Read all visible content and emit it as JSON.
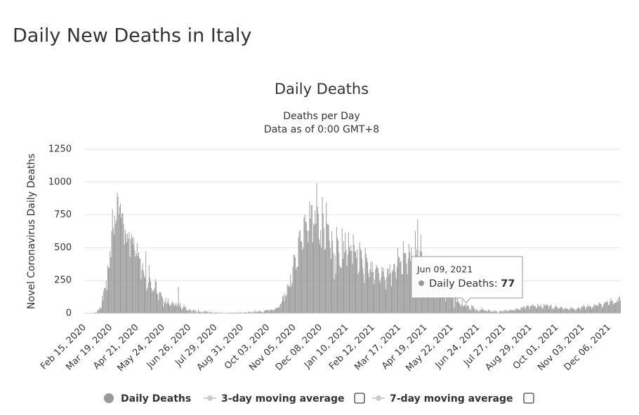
{
  "page_title": "Daily New Deaths in Italy",
  "chart_data": {
    "type": "bar",
    "title": "Daily Deaths",
    "subtitle": [
      "Deaths per Day",
      "Data as of 0:00 GMT+8"
    ],
    "y_label": "Novel Coronavirus Daily Deaths",
    "ylim": [
      0,
      1250
    ],
    "yticks": [
      0,
      250,
      500,
      750,
      1000,
      1250
    ],
    "grid": true,
    "categories": [
      "Feb 15, 2020",
      null,
      null,
      null,
      null,
      null,
      null,
      null,
      null,
      null,
      null,
      null,
      null,
      null,
      null,
      null,
      null,
      null,
      null,
      null,
      null,
      null,
      null,
      null,
      null,
      null,
      null,
      null,
      null,
      null,
      null,
      null,
      null,
      "Mar 19, 2020",
      null,
      null,
      null,
      null,
      null,
      null,
      null,
      null,
      null,
      null,
      null,
      null,
      null,
      null,
      null,
      null,
      null,
      null,
      null,
      null,
      null,
      null,
      null,
      null,
      null,
      null,
      null,
      null,
      null,
      null,
      null,
      null,
      "Apr 21, 2020",
      null,
      null,
      null,
      null,
      null,
      null,
      null,
      null,
      null,
      null,
      null,
      null,
      null,
      null,
      null,
      null,
      null,
      null,
      null,
      null,
      null,
      null,
      null,
      null,
      null,
      null,
      null,
      null,
      null,
      null,
      null,
      null,
      "May 24, 2020",
      null,
      null,
      null,
      null,
      null,
      null,
      null,
      null,
      null,
      null,
      null,
      null,
      null,
      null,
      null,
      null,
      null,
      null,
      null,
      null,
      null,
      null,
      null,
      null,
      null,
      null,
      null,
      null,
      null,
      null,
      null,
      null,
      "Jun 26, 2020",
      null,
      null,
      null,
      null,
      null,
      null,
      null,
      null,
      null,
      null,
      null,
      null,
      null,
      null,
      null,
      null,
      null,
      null,
      null,
      null,
      null,
      null,
      null,
      null,
      null,
      null,
      null,
      null,
      null,
      null,
      null,
      null,
      "Jul 29, 2020",
      null,
      null,
      null,
      null,
      null,
      null,
      null,
      null,
      null,
      null,
      null,
      null,
      null,
      null,
      null,
      null,
      null,
      null,
      null,
      null,
      null,
      null,
      null,
      null,
      null,
      null,
      null,
      null,
      null,
      null,
      null,
      null,
      "Aug 31, 2020",
      null,
      null,
      null,
      null,
      null,
      null,
      null,
      null,
      null,
      null,
      null,
      null,
      null,
      null,
      null,
      null,
      null,
      null,
      null,
      null,
      null,
      null,
      null,
      null,
      null,
      null,
      null,
      null,
      null,
      null,
      null,
      null,
      "Oct 03, 2020",
      null,
      null,
      null,
      null,
      null,
      null,
      null,
      null,
      null,
      null,
      null,
      null,
      null,
      null,
      null,
      null,
      null,
      null,
      null,
      null,
      null,
      null,
      null,
      null,
      null,
      null,
      null,
      null,
      null,
      null,
      null,
      null,
      "Nov 05, 2020",
      null,
      null,
      null,
      null,
      null,
      null,
      null,
      null,
      null,
      null,
      null,
      null,
      null,
      null,
      null,
      null,
      null,
      null,
      null,
      null,
      null,
      null,
      null,
      null,
      null,
      null,
      null,
      null,
      null,
      null,
      null,
      null,
      "Dec 08, 2020",
      null,
      null,
      null,
      null,
      null,
      null,
      null,
      null,
      null,
      null,
      null,
      null,
      null,
      null,
      null,
      null,
      null,
      null,
      null,
      null,
      null,
      null,
      null,
      null,
      null,
      null,
      null,
      null,
      null,
      null,
      null,
      null,
      "Jan 10, 2021",
      null,
      null,
      null,
      null,
      null,
      null,
      null,
      null,
      null,
      null,
      null,
      null,
      null,
      null,
      null,
      null,
      null,
      null,
      null,
      null,
      null,
      null,
      null,
      null,
      null,
      null,
      null,
      null,
      null,
      null,
      null,
      null,
      "Feb 12, 2021",
      null,
      null,
      null,
      null,
      null,
      null,
      null,
      null,
      null,
      null,
      null,
      null,
      null,
      null,
      null,
      null,
      null,
      null,
      null,
      null,
      null,
      null,
      null,
      null,
      null,
      null,
      null,
      null,
      null,
      null,
      null,
      null,
      "Mar 17, 2021",
      null,
      null,
      null,
      null,
      null,
      null,
      null,
      null,
      null,
      null,
      null,
      null,
      null,
      null,
      null,
      null,
      null,
      null,
      null,
      null,
      null,
      null,
      null,
      null,
      null,
      null,
      null,
      null,
      null,
      null,
      null,
      null,
      "Apr 19, 2021",
      null,
      null,
      null,
      null,
      null,
      null,
      null,
      null,
      null,
      null,
      null,
      null,
      null,
      null,
      null,
      null,
      null,
      null,
      null,
      null,
      null,
      null,
      null,
      null,
      null,
      null,
      null,
      null,
      null,
      null,
      null,
      null,
      "May 22, 2021",
      null,
      null,
      null,
      null,
      null,
      null,
      null,
      null,
      null,
      null,
      null,
      null,
      null,
      null,
      null,
      null,
      null,
      null,
      null,
      null,
      null,
      null,
      null,
      null,
      null,
      null,
      null,
      null,
      null,
      null,
      null,
      null,
      "Jun 24, 2021",
      null,
      null,
      null,
      null,
      null,
      null,
      null,
      null,
      null,
      null,
      null,
      null,
      null,
      null,
      null,
      null,
      null,
      null,
      null,
      null,
      null,
      null,
      null,
      null,
      null,
      null,
      null,
      null,
      null,
      null,
      null,
      null,
      "Jul 27, 2021",
      null,
      null,
      null,
      null,
      null,
      null,
      null,
      null,
      null,
      null,
      null,
      null,
      null,
      null,
      null,
      null,
      null,
      null,
      null,
      null,
      null,
      null,
      null,
      null,
      null,
      null,
      null,
      null,
      null,
      null,
      null,
      null,
      "Aug 29, 2021",
      null,
      null,
      null,
      null,
      null,
      null,
      null,
      null,
      null,
      null,
      null,
      null,
      null,
      null,
      null,
      null,
      null,
      null,
      null,
      null,
      null,
      null,
      null,
      null,
      null,
      null,
      null,
      null,
      null,
      null,
      null,
      null,
      "Oct 01, 2021",
      null,
      null,
      null,
      null,
      null,
      null,
      null,
      null,
      null,
      null,
      null,
      null,
      null,
      null,
      null,
      null,
      null,
      null,
      null,
      null,
      null,
      null,
      null,
      null,
      null,
      null,
      null,
      null,
      null,
      null,
      null,
      null,
      "Nov 03, 2021",
      null,
      null,
      null,
      null,
      null,
      null,
      null,
      null,
      null,
      null,
      null,
      null,
      null,
      null,
      null,
      null,
      null,
      null,
      null,
      null,
      null,
      null,
      null,
      null,
      null,
      null,
      null,
      null,
      null,
      null,
      null,
      null,
      "Dec 06, 2021",
      null,
      null,
      null,
      null,
      null,
      null,
      null,
      null,
      null,
      null,
      null,
      null,
      null,
      null
    ],
    "series": [
      {
        "name": "Daily Deaths",
        "color": "#999999",
        "values": [
          0,
          0,
          0,
          0,
          0,
          0,
          1,
          1,
          0,
          4,
          3,
          2,
          5,
          4,
          8,
          5,
          18,
          27,
          28,
          41,
          49,
          36,
          133,
          97,
          168,
          196,
          189,
          250,
          175,
          368,
          349,
          345,
          475,
          427,
          627,
          793,
          651,
          601,
          743,
          683,
          712,
          919,
          889,
          756,
          812,
          837,
          727,
          760,
          766,
          681,
          525,
          636,
          604,
          542,
          610,
          570,
          619,
          431,
          566,
          602,
          578,
          525,
          575,
          482,
          433,
          454,
          534,
          437,
          464,
          420,
          415,
          260,
          333,
          382,
          323,
          285,
          269,
          474,
          174,
          195,
          236,
          369,
          274,
          243,
          194,
          165,
          179,
          172,
          195,
          262,
          242,
          153,
          145,
          99,
          162,
          161,
          156,
          130,
          119,
          50,
          92,
          78,
          117,
          70,
          87,
          111,
          75,
          60,
          55,
          71,
          88,
          85,
          72,
          53,
          65,
          79,
          53,
          71,
          202,
          56,
          78,
          44,
          26,
          34,
          47,
          66,
          49,
          47,
          24,
          23,
          18,
          30,
          30,
          22,
          23,
          8,
          23,
          21,
          30,
          15,
          21,
          7,
          8,
          30,
          15,
          12,
          13,
          7,
          13,
          6,
          17,
          13,
          20,
          11,
          15,
          13,
          3,
          15,
          9,
          5,
          10,
          5,
          5,
          5,
          6,
          11,
          3,
          9,
          5,
          3,
          4,
          5,
          6,
          6,
          3,
          2,
          6,
          1,
          4,
          4,
          6,
          3,
          6,
          6,
          3,
          7,
          5,
          6,
          4,
          6,
          5,
          5,
          7,
          4,
          4,
          13,
          9,
          1,
          4,
          8,
          6,
          6,
          10,
          7,
          6,
          4,
          14,
          10,
          10,
          10,
          6,
          7,
          14,
          9,
          9,
          24,
          10,
          10,
          15,
          14,
          17,
          20,
          11,
          10,
          14,
          7,
          16,
          24,
          23,
          27,
          23,
          24,
          27,
          18,
          28,
          28,
          22,
          28,
          24,
          29,
          39,
          41,
          43,
          41,
          47,
          47,
          69,
          73,
          89,
          127,
          136,
          91,
          151,
          128,
          141,
          221,
          205,
          217,
          199,
          297,
          208,
          233,
          353,
          445,
          446,
          425,
          331,
          353,
          356,
          580,
          623,
          636,
          550,
          546,
          484,
          504,
          731,
          753,
          699,
          692,
          630,
          541,
          630,
          853,
          722,
          822,
          827,
          541,
          686,
          672,
          785,
          684,
          993,
          814,
          761,
          564,
          528,
          634,
          499,
          887,
          761,
          649,
          484,
          491,
          846,
          680,
          683,
          674,
          553,
          498,
          415,
          628,
          553,
          459,
          261,
          445,
          305,
          659,
          575,
          555,
          462,
          364,
          348,
          347,
          649,
          414,
          548,
          463,
          617,
          483,
          361,
          448,
          616,
          507,
          477,
          521,
          475,
          377,
          603,
          524,
          472,
          467,
          420,
          488,
          299,
          318,
          541,
          492,
          477,
          421,
          345,
          299,
          233,
          499,
          456,
          421,
          391,
          307,
          274,
          337,
          397,
          316,
          391,
          316,
          221,
          258,
          336,
          370,
          353,
          347,
          307,
          251,
          232,
          274,
          356,
          318,
          347,
          280,
          253,
          182,
          274,
          343,
          339,
          297,
          373,
          307,
          207,
          318,
          332,
          373,
          380,
          317,
          264,
          354,
          502,
          423,
          431,
          386,
          401,
          300,
          297,
          551,
          460,
          460,
          457,
          380,
          297,
          417,
          529,
          467,
          399,
          501,
          376,
          344,
          326,
          421,
          627,
          443,
          487,
          718,
          344,
          331,
          476,
          602,
          469,
          429,
          344,
          251,
          316,
          390,
          360,
          344,
          364,
          316,
          301,
          217,
          373,
          371,
          263,
          320,
          226,
          227,
          144,
          256,
          244,
          258,
          207,
          224,
          139,
          125,
          251,
          262,
          201,
          182,
          93,
          136,
          140,
          140,
          201,
          149,
          125,
          218,
          121,
          110,
          166,
          44,
          171,
          165,
          86,
          126,
          83,
          93,
          73,
          59,
          66,
          102,
          51,
          60,
          65,
          56,
          77,
          52,
          63,
          57,
          26,
          36,
          21,
          63,
          57,
          52,
          37,
          35,
          17,
          31,
          28,
          21,
          14,
          22,
          31,
          24,
          42,
          28,
          24,
          24,
          20,
          23,
          19,
          13,
          25,
          28,
          21,
          12,
          17,
          14,
          13,
          24,
          10,
          21,
          15,
          15,
          3,
          7,
          14,
          19,
          21,
          13,
          15,
          21,
          15,
          26,
          25,
          19,
          13,
          21,
          20,
          27,
          28,
          24,
          23,
          22,
          27,
          20,
          31,
          40,
          32,
          34,
          33,
          27,
          24,
          42,
          50,
          41,
          55,
          49,
          30,
          44,
          57,
          59,
          61,
          53,
          29,
          55,
          57,
          62,
          69,
          53,
          58,
          55,
          36,
          44,
          72,
          61,
          50,
          56,
          67,
          44,
          30,
          45,
          69,
          59,
          67,
          60,
          67,
          59,
          34,
          59,
          57,
          67,
          36,
          38,
          27,
          44,
          48,
          63,
          50,
          45,
          32,
          41,
          39,
          48,
          52,
          45,
          31,
          29,
          39,
          44,
          34,
          34,
          39,
          24,
          32,
          36,
          50,
          40,
          38,
          35,
          35,
          24,
          24,
          36,
          36,
          45,
          44,
          37,
          24,
          50,
          54,
          51,
          67,
          51,
          28,
          46,
          46,
          68,
          55,
          49,
          58,
          50,
          33,
          49,
          46,
          69,
          65,
          60,
          62,
          56,
          58,
          77,
          84,
          71,
          71,
          39,
          52,
          68,
          83,
          79,
          93,
          86,
          89,
          62,
          66,
          90,
          117,
          96,
          98,
          75,
          65,
          81,
          79,
          86,
          104,
          87,
          123,
          128,
          97
        ]
      }
    ],
    "hidden_series": [
      {
        "name": "3-day moving average",
        "color": "#cccccc"
      },
      {
        "name": "7-day moving average",
        "color": "#cccccc"
      }
    ],
    "tooltip": {
      "title": "Jun 09, 2021",
      "label": "Daily Deaths:",
      "value": 77,
      "index": 480
    }
  }
}
